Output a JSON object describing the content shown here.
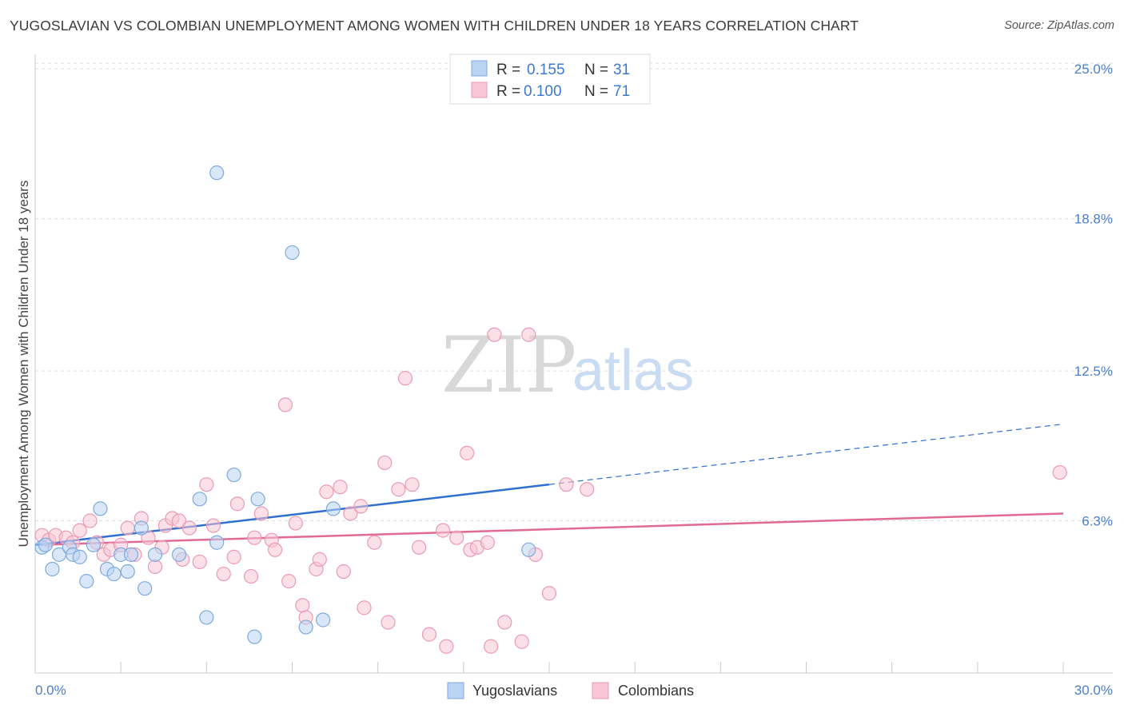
{
  "title": "YUGOSLAVIAN VS COLOMBIAN UNEMPLOYMENT AMONG WOMEN WITH CHILDREN UNDER 18 YEARS CORRELATION CHART",
  "source": "Source: ZipAtlas.com",
  "watermark": {
    "zip": "ZIP",
    "atlas": "atlas"
  },
  "legend_top": [
    {
      "r_label": "R =",
      "r_value": "0.155",
      "n_label": "N =",
      "n_value": "31"
    },
    {
      "r_label": "R =",
      "r_value": "0.100",
      "n_label": "N =",
      "n_value": "71"
    }
  ],
  "legend_bottom": [
    "Yugoslavians",
    "Colombians"
  ],
  "colors": {
    "yugoslavians_fill": "#b9d3f2",
    "yugoslavians_stroke": "#7faadf",
    "yugoslavians_line": "#2f6fd0",
    "colombians_fill": "#f8c6d6",
    "colombians_stroke": "#eb9ab3",
    "colombians_line": "#e06a93",
    "tick_text": "#4a7fc9",
    "grid": "#dddddd"
  },
  "chart_data": {
    "type": "scatter",
    "title": "YUGOSLAVIAN VS COLOMBIAN UNEMPLOYMENT AMONG WOMEN WITH CHILDREN UNDER 18 YEARS CORRELATION CHART",
    "xlabel": "",
    "ylabel": "Unemployment Among Women with Children Under 18 years",
    "xlim": [
      0,
      30
    ],
    "ylim": [
      0,
      25.6
    ],
    "x_tick_labels": [
      "0.0%",
      "30.0%"
    ],
    "y_ticks": [
      6.3,
      12.5,
      18.8,
      25.0
    ],
    "y_tick_labels": [
      "6.3%",
      "12.5%",
      "18.8%",
      "25.0%"
    ],
    "grid": "horizontal dashed",
    "legend_placement": "top-center",
    "series": [
      {
        "name": "Yugoslavians",
        "r": 0.155,
        "n": 31,
        "trend": {
          "x_start": 0,
          "y_start": 5.3,
          "x_solid_end": 15,
          "y_solid_end": 7.8,
          "x_dash_end": 30,
          "y_dash_end": 10.3
        },
        "points": [
          [
            0.2,
            5.2
          ],
          [
            0.3,
            5.3
          ],
          [
            0.5,
            4.3
          ],
          [
            0.7,
            4.9
          ],
          [
            1.0,
            5.2
          ],
          [
            1.1,
            4.9
          ],
          [
            1.3,
            4.8
          ],
          [
            1.5,
            3.8
          ],
          [
            1.7,
            5.3
          ],
          [
            1.9,
            6.8
          ],
          [
            2.1,
            4.3
          ],
          [
            2.3,
            4.1
          ],
          [
            2.5,
            4.9
          ],
          [
            2.7,
            4.2
          ],
          [
            2.8,
            4.9
          ],
          [
            3.1,
            6.0
          ],
          [
            3.2,
            3.5
          ],
          [
            3.5,
            4.9
          ],
          [
            4.2,
            4.9
          ],
          [
            4.8,
            7.2
          ],
          [
            5.0,
            2.3
          ],
          [
            5.3,
            20.7
          ],
          [
            5.3,
            5.4
          ],
          [
            5.8,
            8.2
          ],
          [
            6.4,
            1.5
          ],
          [
            6.5,
            7.2
          ],
          [
            7.5,
            17.4
          ],
          [
            7.9,
            1.9
          ],
          [
            8.4,
            2.2
          ],
          [
            8.7,
            6.8
          ],
          [
            14.4,
            5.1
          ]
        ]
      },
      {
        "name": "Colombians",
        "r": 0.1,
        "n": 71,
        "trend": {
          "x_start": 0,
          "y_start": 5.3,
          "x_end": 30,
          "y_end": 6.6
        },
        "points": [
          [
            0.2,
            5.7
          ],
          [
            0.4,
            5.5
          ],
          [
            0.6,
            5.7
          ],
          [
            0.9,
            5.6
          ],
          [
            1.1,
            5.4
          ],
          [
            1.3,
            5.9
          ],
          [
            1.6,
            6.3
          ],
          [
            1.8,
            5.4
          ],
          [
            2.0,
            4.9
          ],
          [
            2.2,
            5.1
          ],
          [
            2.5,
            5.3
          ],
          [
            2.7,
            6.0
          ],
          [
            2.9,
            4.9
          ],
          [
            3.1,
            6.4
          ],
          [
            3.3,
            5.6
          ],
          [
            3.5,
            4.4
          ],
          [
            3.7,
            5.2
          ],
          [
            3.8,
            6.1
          ],
          [
            4.0,
            6.4
          ],
          [
            4.2,
            6.3
          ],
          [
            4.3,
            4.7
          ],
          [
            4.5,
            6.0
          ],
          [
            4.8,
            4.6
          ],
          [
            5.0,
            7.8
          ],
          [
            5.2,
            6.1
          ],
          [
            5.5,
            4.1
          ],
          [
            5.8,
            4.8
          ],
          [
            5.9,
            7.0
          ],
          [
            6.3,
            4.0
          ],
          [
            6.4,
            5.6
          ],
          [
            6.6,
            6.6
          ],
          [
            6.9,
            5.5
          ],
          [
            7.0,
            5.1
          ],
          [
            7.3,
            11.1
          ],
          [
            7.4,
            3.8
          ],
          [
            7.6,
            6.2
          ],
          [
            7.8,
            2.8
          ],
          [
            7.9,
            2.3
          ],
          [
            8.2,
            4.3
          ],
          [
            8.3,
            4.7
          ],
          [
            8.5,
            7.5
          ],
          [
            8.9,
            7.7
          ],
          [
            9.0,
            4.2
          ],
          [
            9.2,
            6.6
          ],
          [
            9.6,
            2.7
          ],
          [
            9.9,
            5.4
          ],
          [
            10.2,
            8.7
          ],
          [
            10.3,
            2.1
          ],
          [
            10.6,
            7.6
          ],
          [
            10.8,
            12.2
          ],
          [
            11.0,
            7.8
          ],
          [
            11.2,
            5.2
          ],
          [
            11.5,
            1.6
          ],
          [
            11.9,
            5.9
          ],
          [
            12.0,
            1.1
          ],
          [
            12.3,
            5.6
          ],
          [
            12.6,
            9.1
          ],
          [
            12.7,
            5.1
          ],
          [
            12.9,
            5.2
          ],
          [
            13.2,
            5.4
          ],
          [
            13.3,
            1.1
          ],
          [
            13.4,
            14.0
          ],
          [
            13.7,
            2.1
          ],
          [
            14.4,
            14.0
          ],
          [
            14.6,
            4.9
          ],
          [
            15.0,
            3.3
          ],
          [
            15.5,
            7.8
          ],
          [
            16.1,
            7.6
          ],
          [
            29.9,
            8.3
          ],
          [
            14.2,
            1.3
          ],
          [
            9.5,
            6.9
          ]
        ]
      }
    ]
  }
}
